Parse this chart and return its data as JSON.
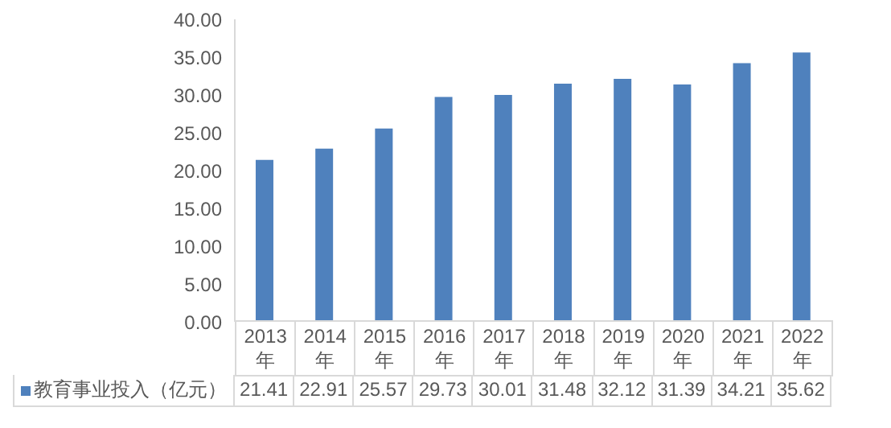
{
  "chart_data": {
    "type": "bar",
    "categories": [
      "2013年",
      "2014年",
      "2015年",
      "2016年",
      "2017年",
      "2018年",
      "2019年",
      "2020年",
      "2021年",
      "2022年"
    ],
    "series": [
      {
        "name": "教育事业投入（亿元）",
        "color": "#4f81bd",
        "values": [
          21.41,
          22.91,
          25.57,
          29.73,
          30.01,
          31.48,
          32.12,
          31.39,
          34.21,
          35.62
        ]
      }
    ],
    "ylim": [
      0,
      40
    ],
    "yticks": [
      {
        "value": 0,
        "label": "0.00"
      },
      {
        "value": 5,
        "label": "5.00"
      },
      {
        "value": 10,
        "label": "10.00"
      },
      {
        "value": 15,
        "label": "15.00"
      },
      {
        "value": 20,
        "label": "20.00"
      },
      {
        "value": 25,
        "label": "25.00"
      },
      {
        "value": 30,
        "label": "30.00"
      },
      {
        "value": 35,
        "label": "35.00"
      },
      {
        "value": 40,
        "label": "40.00"
      }
    ],
    "grid": false,
    "legend": "bottom",
    "data_labels": true
  }
}
